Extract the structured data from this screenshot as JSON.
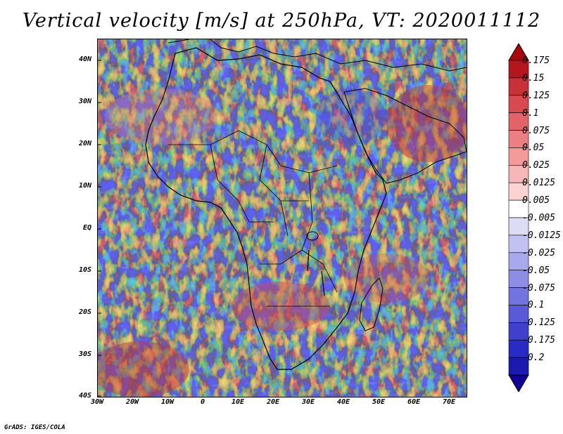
{
  "title": "Vertical velocity [m/s] at 250hPa, VT: 2020011112",
  "footer": "GrADS: IGES/COLA",
  "lat_labels": [
    "40N",
    "30N",
    "20N",
    "10N",
    "EQ",
    "10S",
    "20S",
    "30S",
    "40S"
  ],
  "lon_labels": [
    "30W",
    "20W",
    "10W",
    "0",
    "10E",
    "20E",
    "30E",
    "40E",
    "50E",
    "60E",
    "70E"
  ],
  "colorbar": {
    "labels": [
      "0.175",
      "0.15",
      "0.125",
      "0.1",
      "0.075",
      "0.05",
      "0.025",
      "0.0125",
      "0.005",
      "-0.005",
      "-0.0125",
      "-0.025",
      "-0.05",
      "-0.075",
      "-0.1",
      "-0.125",
      "-0.175",
      "-0.2"
    ],
    "colors": [
      "#b5161d",
      "#c73137",
      "#d84a4f",
      "#e36468",
      "#ec7f82",
      "#f29a9c",
      "#f7b6b7",
      "#fbd3d3",
      "#ffffff",
      "#dcdcf7",
      "#c2c2f2",
      "#a8a8ec",
      "#8d8de5",
      "#7474df",
      "#5a5ad7",
      "#4040cf",
      "#2a2ac4",
      "#1a1ab0"
    ],
    "top_arrow_color": "#a5080f",
    "bottom_arrow_color": "#100097"
  },
  "map": {
    "ocean_red_areas": "South Atlantic, Arabian Sea",
    "background": "#ffffff"
  }
}
